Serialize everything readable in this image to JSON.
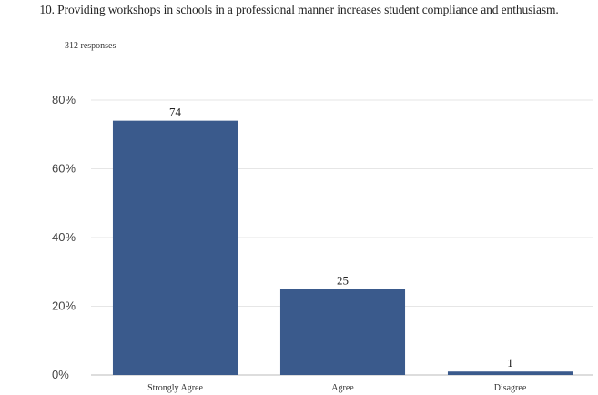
{
  "title": "10. Providing workshops in schools in a professional manner increases student compliance and enthusiasm.",
  "responses_text": "312 responses",
  "chart_data": {
    "type": "bar",
    "categories": [
      "Strongly Agree",
      "Agree",
      "Disagree"
    ],
    "values": [
      74,
      25,
      1
    ],
    "data_labels": [
      "74",
      "25",
      "1"
    ],
    "ylim": [
      0,
      80
    ],
    "yticks": [
      0,
      20,
      40,
      60,
      80
    ],
    "ytick_labels": [
      "0%",
      "20%",
      "40%",
      "60%",
      "80%"
    ],
    "xlabel": "",
    "ylabel": "",
    "grid": true,
    "bar_color": "#3a5a8c",
    "grid_color": "#e6e6e6"
  }
}
